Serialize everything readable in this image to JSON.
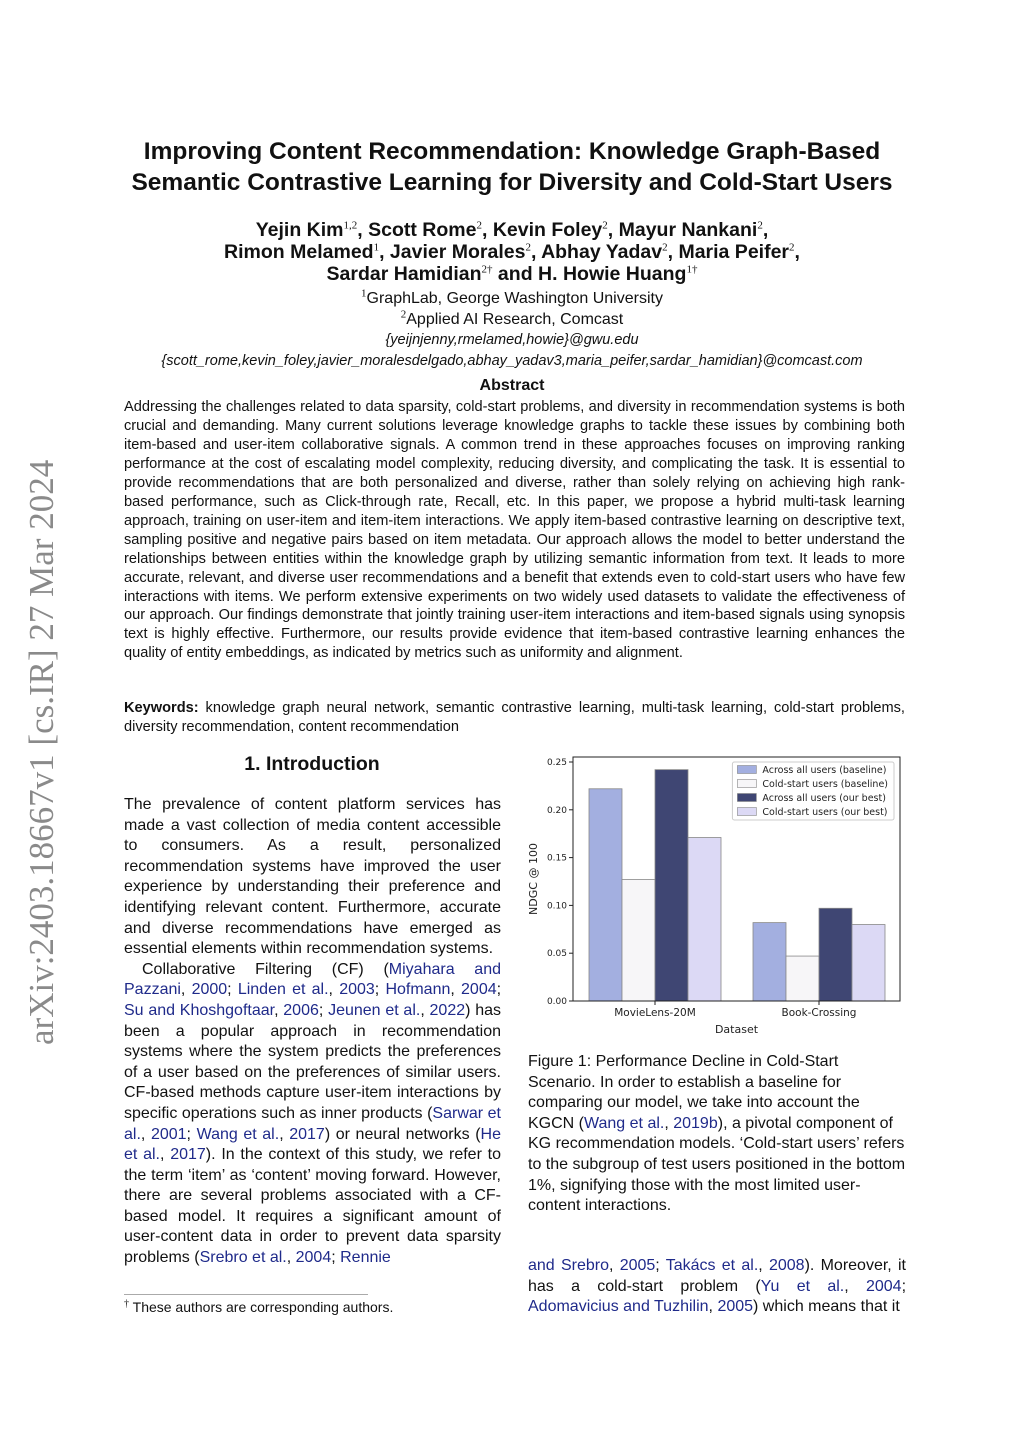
{
  "sidebar": {
    "arxiv_id": "arXiv:2403.18667v1  [cs.IR]  27 Mar 2024"
  },
  "title": [
    "Improving Content Recommendation: Knowledge Graph-Based",
    "Semantic Contrastive Learning for Diversity and Cold-Start Users"
  ],
  "authors": {
    "lines": [
      [
        {
          "n": "Yejin Kim",
          "s": "1,2"
        },
        {
          "t": ", "
        },
        {
          "n": "Scott Rome",
          "s": "2"
        },
        {
          "t": ", "
        },
        {
          "n": "Kevin Foley",
          "s": "2"
        },
        {
          "t": ", "
        },
        {
          "n": "Mayur Nankani",
          "s": "2"
        },
        {
          "t": ","
        }
      ],
      [
        {
          "n": "Rimon Melamed",
          "s": "1"
        },
        {
          "t": ", "
        },
        {
          "n": "Javier Morales",
          "s": "2"
        },
        {
          "t": ", "
        },
        {
          "n": "Abhay Yadav",
          "s": "2"
        },
        {
          "t": ", "
        },
        {
          "n": "Maria Peifer",
          "s": "2"
        },
        {
          "t": ","
        }
      ],
      [
        {
          "n": "Sardar Hamidian",
          "s": "2†"
        },
        {
          "t": " and "
        },
        {
          "n": "H. Howie Huang",
          "s": "1†"
        }
      ]
    ],
    "affiliations": [
      {
        "s": "1",
        "t": "GraphLab, George Washington University"
      },
      {
        "s": "2",
        "t": "Applied AI Research, Comcast"
      }
    ],
    "emails": [
      "{yeijnjenny,rmelamed,howie}@gwu.edu",
      "{scott_rome,kevin_foley,javier_moralesdelgado,abhay_yadav3,maria_peifer,sardar_hamidian}@comcast.com"
    ]
  },
  "abstract": {
    "heading": "Abstract",
    "text": "Addressing the challenges related to data sparsity, cold-start problems, and diversity in recommendation systems is both crucial and demanding. Many current solutions leverage knowledge graphs to tackle these issues by combining both item-based and user-item collaborative signals. A common trend in these approaches focuses on improving ranking performance at the cost of escalating model complexity, reducing diversity, and complicating the task. It is essential to provide recommendations that are both personalized and diverse, rather than solely relying on achieving high rank-based performance, such as Click-through rate, Recall, etc. In this paper, we propose a hybrid multi-task learning approach, training on user-item and item-item interactions. We apply item-based contrastive learning on descriptive text, sampling positive and negative pairs based on item metadata. Our approach allows the model to better understand the relationships between entities within the knowledge graph by utilizing semantic information from text. It leads to more accurate, relevant, and diverse user recommendations and a benefit that extends even to cold-start users who have few interactions with items. We perform extensive experiments on two widely used datasets to validate the effectiveness of our approach. Our findings demonstrate that jointly training user-item interactions and item-based signals using synopsis text is highly effective. Furthermore, our results provide evidence that item-based contrastive learning enhances the quality of entity embeddings, as indicated by metrics such as uniformity and alignment."
  },
  "keywords": {
    "label": "Keywords:",
    "text": " knowledge graph neural network, semantic contrastive learning, multi-task learning, cold-start problems, diversity recommendation, content recommendation"
  },
  "intro": {
    "heading": "1.   Introduction",
    "paragraphs": [
      [
        {
          "t": "The prevalence of content platform services has made a vast collection of media content accessible to consumers. As a result, personalized recommendation systems have improved the user experience by understanding their preference and identifying relevant content.  Furthermore, accurate and diverse recommendations have emerged as essential elements within recommendation systems."
        }
      ],
      [
        {
          "t": "Collaborative Filtering (CF) ("
        },
        {
          "l": "Miyahara and Pazzani"
        },
        {
          "t": ", "
        },
        {
          "l": "2000"
        },
        {
          "t": "; "
        },
        {
          "l": "Linden et al."
        },
        {
          "t": ", "
        },
        {
          "l": "2003"
        },
        {
          "t": "; "
        },
        {
          "l": "Hofmann"
        },
        {
          "t": ", "
        },
        {
          "l": "2004"
        },
        {
          "t": "; "
        },
        {
          "l": "Su and Khoshgoftaar"
        },
        {
          "t": ", "
        },
        {
          "l": "2006"
        },
        {
          "t": "; "
        },
        {
          "l": "Jeunen et al."
        },
        {
          "t": ", "
        },
        {
          "l": "2022"
        },
        {
          "t": ") has been a popular approach in recommendation systems where the system predicts the preferences of a user based on the preferences of similar users. CF-based methods capture user-item interactions by specific operations such as inner products ("
        },
        {
          "l": "Sarwar et al."
        },
        {
          "t": ", "
        },
        {
          "l": "2001"
        },
        {
          "t": "; "
        },
        {
          "l": "Wang et al."
        },
        {
          "t": ", "
        },
        {
          "l": "2017"
        },
        {
          "t": ") or neural networks ("
        },
        {
          "l": "He et al."
        },
        {
          "t": ", "
        },
        {
          "l": "2017"
        },
        {
          "t": "). In the context of this study, we refer to the term ‘item’ as ‘content’ moving forward. However, there are several problems associated with a CF-based model.  It requires a significant amount of user-content data in order to prevent data sparsity problems ("
        },
        {
          "l": "Srebro et al."
        },
        {
          "t": ", "
        },
        {
          "l": "2004"
        },
        {
          "t": "; "
        },
        {
          "l": "Rennie"
        }
      ]
    ]
  },
  "footnote": {
    "mark": "†",
    "text": " These authors are corresponding authors."
  },
  "figure": {
    "caption": "Figure 1: Performance Decline in Cold-Start Scenario. In order to establish a baseline for comparing our model, we take into account the KGCN (",
    "caption_segments": [
      {
        "t": "Figure 1: Performance Decline in Cold-Start Scenario. In order to establish a baseline for comparing our model, we take into account the KGCN ("
      },
      {
        "l": "Wang et al."
      },
      {
        "t": ", "
      },
      {
        "l": "2019b"
      },
      {
        "t": "), a pivotal component of KG recommendation models. ‘Cold-start users’ refers to the subgroup of test users positioned in the bottom 1%, signifying those with the most limited user-content interactions."
      }
    ]
  },
  "right_col": [
    {
      "l": "and Srebro"
    },
    {
      "t": ", "
    },
    {
      "l": "2005"
    },
    {
      "t": "; "
    },
    {
      "l": "Takács et al."
    },
    {
      "t": ", "
    },
    {
      "l": "2008"
    },
    {
      "t": "). Moreover, it has a cold-start problem ("
    },
    {
      "l": "Yu et al."
    },
    {
      "t": ", "
    },
    {
      "l": "2004"
    },
    {
      "t": "; "
    },
    {
      "l": "Adomavicius and Tuzhilin"
    },
    {
      "t": ", "
    },
    {
      "l": "2005"
    },
    {
      "t": ") which means that it"
    }
  ],
  "chart_data": {
    "type": "bar",
    "categories": [
      "MovieLens-20M",
      "Book-Crossing"
    ],
    "xlabel": "Dataset",
    "ylabel": "NDGC @ 100",
    "ylim": [
      0,
      0.255
    ],
    "yticks": [
      "0.00",
      "0.05",
      "0.10",
      "0.15",
      "0.20",
      "0.25"
    ],
    "legend_position": "top-right",
    "grid": false,
    "series": [
      {
        "name": "Across all users (baseline)",
        "values": [
          0.222,
          0.082
        ],
        "color": "#a3afe0"
      },
      {
        "name": "Cold-start users (baseline)",
        "values": [
          0.127,
          0.047
        ],
        "color": "#f7f6f8"
      },
      {
        "name": "Across all users (our best)",
        "values": [
          0.242,
          0.097
        ],
        "color": "#3f4673"
      },
      {
        "name": "Cold-start users (our best)",
        "values": [
          0.171,
          0.08
        ],
        "color": "#dcd9f5"
      }
    ]
  },
  "colors": {
    "link": "#1f2a8a",
    "sidebar": "#8a8a8a"
  }
}
